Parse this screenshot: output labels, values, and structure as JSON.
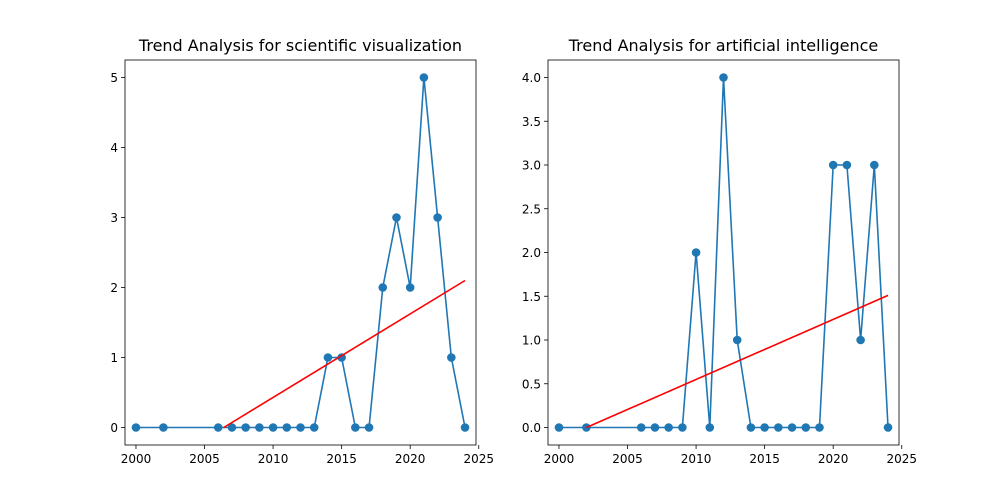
{
  "chart_data": [
    {
      "type": "line",
      "title": "Trend Analysis for scientific visualization",
      "xlabel": "",
      "ylabel": "",
      "xlim": [
        1999.2,
        2024.8
      ],
      "ylim": [
        -0.25,
        5.25
      ],
      "xticks": [
        2000,
        2005,
        2010,
        2015,
        2020,
        2025
      ],
      "yticks": [
        0,
        1,
        2,
        3,
        4,
        5
      ],
      "ytick_labels": [
        "0",
        "1",
        "2",
        "3",
        "4",
        "5"
      ],
      "series": [
        {
          "color": "#1f77b4",
          "marker": "circle",
          "x": [
            2000,
            2002,
            2006,
            2007,
            2008,
            2009,
            2010,
            2011,
            2012,
            2013,
            2014,
            2015,
            2016,
            2017,
            2018,
            2019,
            2020,
            2021,
            2022,
            2023,
            2024
          ],
          "y": [
            0,
            0,
            0,
            0,
            0,
            0,
            0,
            0,
            0,
            0,
            1,
            1,
            0,
            0,
            2,
            3,
            2,
            5,
            3,
            1,
            0
          ]
        }
      ],
      "trend_line": {
        "color": "#ff0000",
        "x": [
          2006.4,
          2024
        ],
        "y": [
          0,
          2.1
        ]
      },
      "grid": false,
      "legend": "none"
    },
    {
      "type": "line",
      "title": "Trend Analysis for artificial intelligence",
      "xlabel": "",
      "ylabel": "",
      "xlim": [
        1999.2,
        2024.8
      ],
      "ylim": [
        -0.2,
        4.2
      ],
      "xticks": [
        2000,
        2005,
        2010,
        2015,
        2020,
        2025
      ],
      "yticks": [
        0,
        0.5,
        1,
        1.5,
        2,
        2.5,
        3,
        3.5,
        4
      ],
      "ytick_labels": [
        "0.0",
        "0.5",
        "1.0",
        "1.5",
        "2.0",
        "2.5",
        "3.0",
        "3.5",
        "4.0"
      ],
      "series": [
        {
          "color": "#1f77b4",
          "marker": "circle",
          "x": [
            2000,
            2002,
            2006,
            2007,
            2008,
            2009,
            2010,
            2011,
            2012,
            2013,
            2014,
            2015,
            2016,
            2017,
            2018,
            2019,
            2020,
            2021,
            2022,
            2023,
            2024
          ],
          "y": [
            0,
            0,
            0,
            0,
            0,
            0,
            2,
            0,
            4,
            1,
            0,
            0,
            0,
            0,
            0,
            0,
            3,
            3,
            1,
            3,
            0
          ]
        }
      ],
      "trend_line": {
        "color": "#ff0000",
        "x": [
          2002,
          2024
        ],
        "y": [
          0,
          1.51
        ]
      },
      "grid": false,
      "legend": "none"
    }
  ]
}
